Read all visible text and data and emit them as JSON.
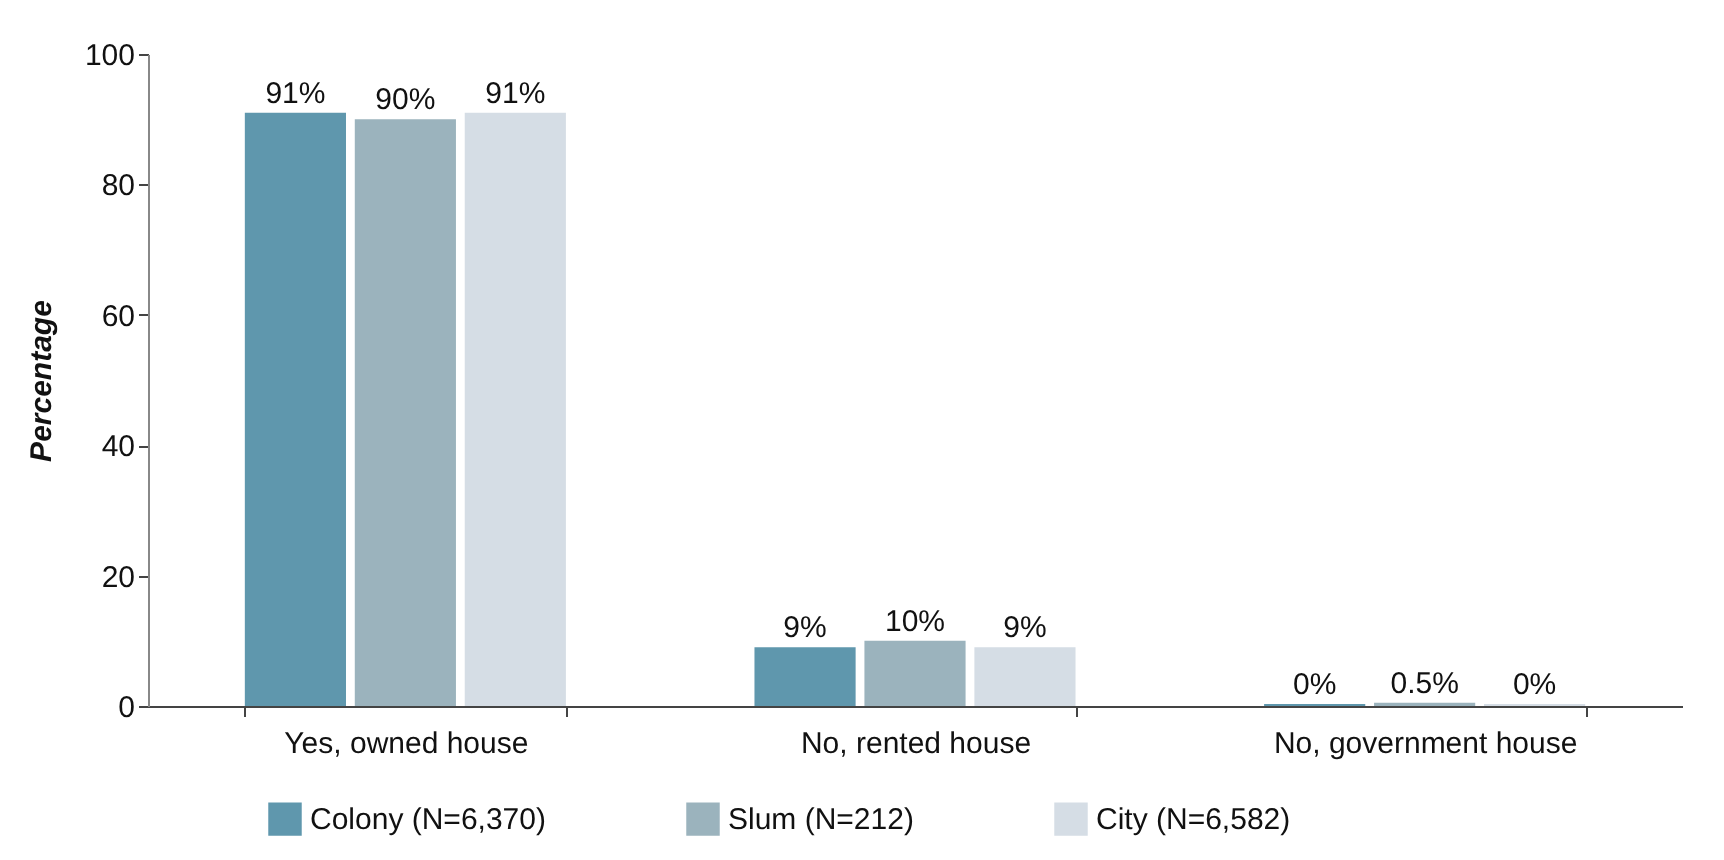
{
  "chart_data": {
    "type": "bar",
    "ylabel": "Percentage",
    "categories": [
      "Yes, owned house",
      "No, rented house",
      "No, government house"
    ],
    "ylim": [
      0,
      100
    ],
    "yticks": [
      0,
      20,
      40,
      60,
      80,
      100
    ],
    "grid": false,
    "legend": "bottom",
    "series": [
      {
        "name": "Colony (N=6,370)",
        "color": "#5f97ad",
        "values": [
          91,
          9,
          0.3
        ],
        "value_labels": [
          "91%",
          "9%",
          "0%"
        ]
      },
      {
        "name": "Slum (N=212)",
        "color": "#9bb3bd",
        "values": [
          90,
          10,
          0.5
        ],
        "value_labels": [
          "90%",
          "10%",
          "0.5%"
        ]
      },
      {
        "name": "City (N=6,582)",
        "color": "#d5dde5",
        "values": [
          91,
          9,
          0.3
        ],
        "value_labels": [
          "91%",
          "9%",
          "0%"
        ]
      }
    ]
  }
}
